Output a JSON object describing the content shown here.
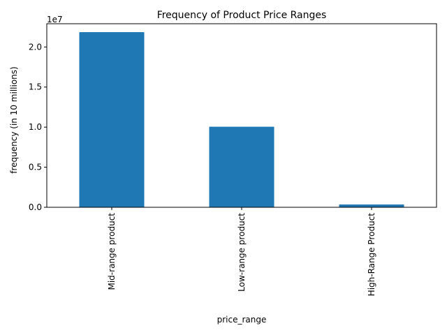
{
  "chart_data": {
    "type": "bar",
    "title": "Frequency of Product Price Ranges",
    "xlabel": "price_range",
    "ylabel": "frequency (in 10 millions)",
    "offset_text": "1e7",
    "categories": [
      "Mid-range product",
      "Low-range product",
      "High-Range Product"
    ],
    "values": [
      21850000,
      10050000,
      350000
    ],
    "ylim": [
      0,
      22900000
    ],
    "yticks": [
      0,
      5000000,
      10000000,
      15000000,
      20000000
    ],
    "ytick_labels": [
      "0.0",
      "0.5",
      "1.0",
      "1.5",
      "2.0"
    ],
    "grid": false,
    "colors": {
      "bar": "#1f77b4"
    }
  }
}
